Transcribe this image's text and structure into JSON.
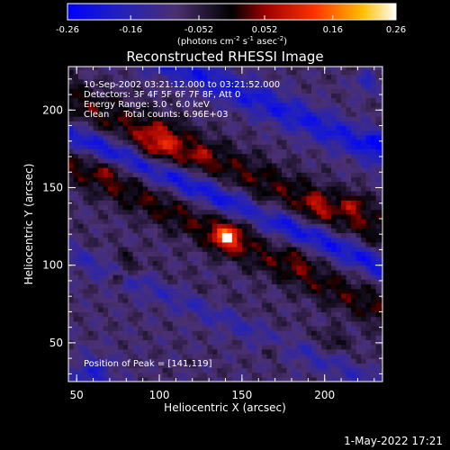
{
  "chart_data": {
    "type": "heatmap",
    "title": "Reconstructed RHESSI Image",
    "xlabel": "Heliocentric X (arcsec)",
    "ylabel": "Heliocentric Y (arcsec)",
    "xlim": [
      45,
      235
    ],
    "ylim": [
      25,
      228
    ],
    "x_ticks": [
      50,
      100,
      150,
      200
    ],
    "y_ticks": [
      50,
      100,
      150,
      200
    ],
    "colorbar": {
      "range": [
        -0.26,
        0.26
      ],
      "ticks": [
        -0.26,
        -0.16,
        -0.052,
        0.052,
        0.16,
        0.26
      ],
      "tick_labels": [
        "-0.26",
        "-0.16",
        "-0.052",
        "0.052",
        "0.16",
        "0.26"
      ],
      "label_parts": [
        "(photons cm",
        "-2",
        " s",
        "-1",
        " asec",
        "-2",
        ")"
      ]
    },
    "annotations": [
      "10-Sep-2002 03:21:12.000 to 03:21:52.000",
      "Detectors: 3F 4F 5F 6F 7F 8F, Att 0",
      "Energy Range: 3.0 - 6.0 keV",
      "Clean     Total counts: 6.96E+03"
    ],
    "peak_label": "Position of Peak = [141,119]",
    "peak": {
      "x": 141,
      "y": 119,
      "value": 0.26
    },
    "grid": false,
    "colors": {
      "background": "#000000",
      "text": "#ffffff",
      "low": "#0000ff",
      "mid": "#000000",
      "high": "#ffffff"
    },
    "features": [
      {
        "kind": "band",
        "cx": 128,
        "cy": 170,
        "dx": 1,
        "dy": -0.45,
        "width": 14,
        "value": 0.09
      },
      {
        "kind": "band",
        "cx": 160,
        "cy": 108,
        "dx": 1,
        "dy": -0.5,
        "width": 12,
        "value": 0.09
      },
      {
        "kind": "band",
        "cx": 185,
        "cy": 52,
        "dx": 1,
        "dy": -0.45,
        "width": 9,
        "value": 0.1
      },
      {
        "kind": "band",
        "cx": 150,
        "cy": 138,
        "dx": 1,
        "dy": -0.45,
        "width": 8,
        "value": -0.14
      },
      {
        "kind": "band",
        "cx": 120,
        "cy": 78,
        "dx": 1,
        "dy": -0.45,
        "width": 9,
        "value": -0.14
      },
      {
        "kind": "band",
        "cx": 175,
        "cy": 200,
        "dx": 1,
        "dy": -0.45,
        "width": 10,
        "value": -0.12
      },
      {
        "kind": "blob",
        "cx": 141,
        "cy": 119,
        "r": 9,
        "value": 0.17
      },
      {
        "kind": "blob",
        "cx": 100,
        "cy": 178,
        "r": 14,
        "value": 0.1
      },
      {
        "kind": "blob",
        "cx": 125,
        "cy": 170,
        "r": 8,
        "value": 0.05
      },
      {
        "kind": "blob",
        "cx": 70,
        "cy": 162,
        "r": 7,
        "value": 0.06
      },
      {
        "kind": "blob",
        "cx": 160,
        "cy": 135,
        "r": 8,
        "value": 0.06
      },
      {
        "kind": "blob",
        "cx": 195,
        "cy": 138,
        "r": 9,
        "value": 0.07
      },
      {
        "kind": "blob",
        "cx": 218,
        "cy": 140,
        "r": 8,
        "value": 0.08
      },
      {
        "kind": "blob",
        "cx": 80,
        "cy": 100,
        "r": 7,
        "value": 0.07
      },
      {
        "kind": "blob",
        "cx": 75,
        "cy": 92,
        "r": 4,
        "value": 0.08
      },
      {
        "kind": "blob",
        "cx": 185,
        "cy": 105,
        "r": 8,
        "value": 0.05
      },
      {
        "kind": "blob",
        "cx": 205,
        "cy": 52,
        "r": 7,
        "value": 0.06
      },
      {
        "kind": "blob",
        "cx": 170,
        "cy": 48,
        "r": 8,
        "value": 0.05
      },
      {
        "kind": "blob",
        "cx": 60,
        "cy": 30,
        "r": 12,
        "value": -0.1
      },
      {
        "kind": "blob",
        "cx": 225,
        "cy": 218,
        "r": 6,
        "value": -0.1
      },
      {
        "kind": "blob",
        "cx": 230,
        "cy": 180,
        "r": 6,
        "value": -0.08
      }
    ]
  },
  "footer": {
    "date": "1-May-2022 17:21"
  }
}
